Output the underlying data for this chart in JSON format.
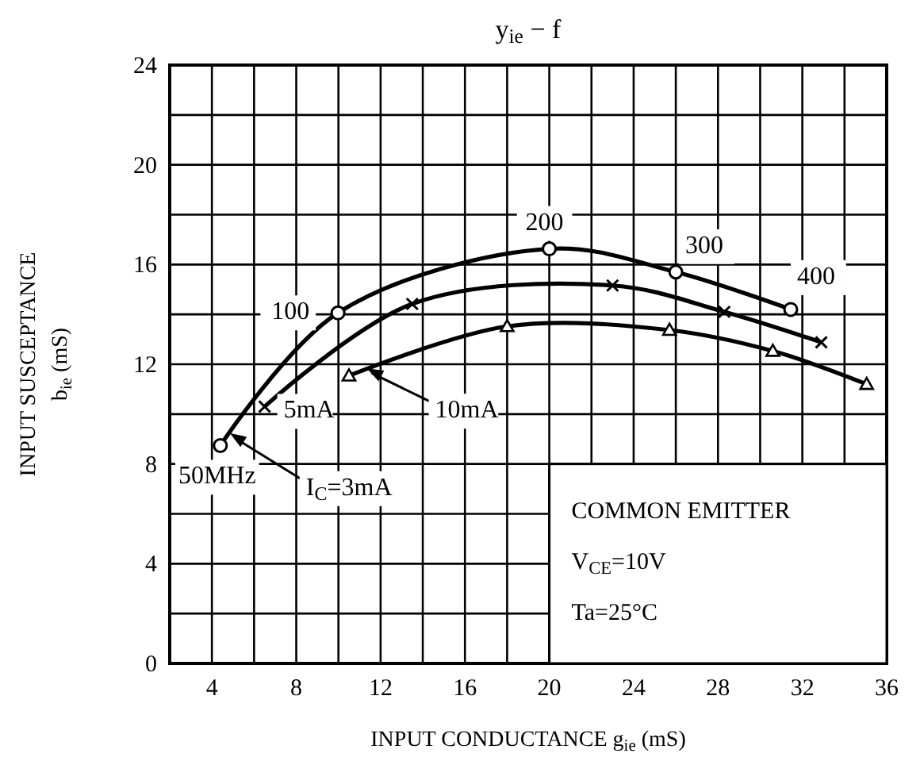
{
  "chart_data": {
    "type": "line",
    "title": "y$_{ie}$ − f",
    "xlabel": "INPUT CONDUCTANCE  g$_{ie}$  (mS)",
    "ylabel": "INPUT SUSCEPTANCE\nb$_{ie}$  (mS)",
    "xlim": [
      2,
      36
    ],
    "xticks": [
      4,
      {
        "value": 6,
        "label": null
      },
      8,
      {
        "value": 10,
        "label": null
      },
      12,
      {
        "value": 14,
        "label": null
      },
      16,
      {
        "value": 18,
        "label": null
      },
      20,
      {
        "value": 22,
        "label": null
      },
      24,
      {
        "value": 26,
        "label": null
      },
      28,
      {
        "value": 30,
        "label": null
      },
      32,
      {
        "value": 34,
        "label": null
      },
      36
    ],
    "ylim": [
      0,
      24
    ],
    "yticks": [
      0,
      {
        "value": 2,
        "label": null
      },
      4,
      {
        "value": 6,
        "label": null
      },
      8,
      {
        "value": 10,
        "label": null
      },
      12,
      {
        "value": 14,
        "label": null
      },
      16,
      {
        "value": 18,
        "label": null
      },
      20,
      {
        "value": 22,
        "label": null
      },
      24
    ],
    "grid": true,
    "line_style": "solid",
    "series": [
      {
        "color": "#000000",
        "marker": "circle",
        "x": [
          4.4,
          9.98,
          20,
          26,
          31.45
        ],
        "values": [
          8.74,
          14.06,
          16.63,
          15.7,
          14.2
        ]
      },
      {
        "color": "#000000",
        "marker": "cross",
        "x": [
          6.5,
          13.5,
          23,
          28.3,
          32.9
        ],
        "values": [
          10.3,
          14.42,
          15.16,
          14.1,
          12.88
        ]
      },
      {
        "color": "#000000",
        "marker": "triangle",
        "x": [
          10.5,
          18,
          25.7,
          30.6,
          35.05
        ],
        "values": [
          11.54,
          13.52,
          13.37,
          12.53,
          11.2
        ]
      }
    ],
    "annotations": [
      {
        "text": "50MHz",
        "x": 4.4,
        "y": 8.74
      },
      {
        "text": "100",
        "x": 9.98,
        "y": 14.06
      },
      {
        "text": "200",
        "x": 20,
        "y": 16.63
      },
      {
        "text": "300",
        "x": 26,
        "y": 15.7
      },
      {
        "text": "400",
        "x": 31.45,
        "y": 14.2
      },
      {
        "text": "I$_{C}$=3mA",
        "x": 4.7,
        "y": 9.3
      },
      {
        "text": "5mA",
        "x": 6.5,
        "y": 10.3
      },
      {
        "text": "10mA",
        "x": 11.2,
        "y": 11.9
      },
      "COMMON EMITTER",
      "V$_{CE}$=10V",
      "Ta=25°C"
    ]
  }
}
